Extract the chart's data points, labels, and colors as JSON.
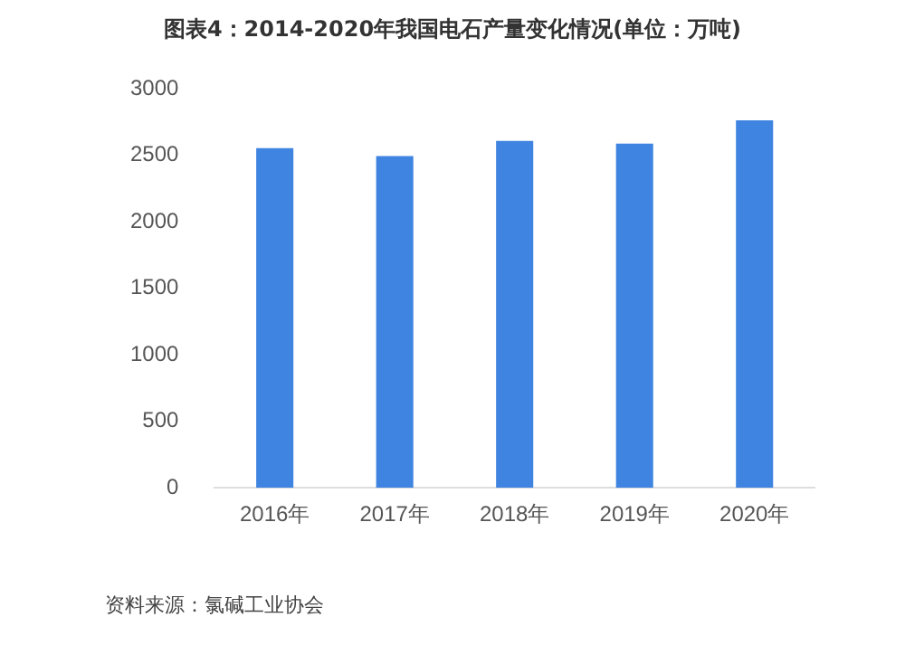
{
  "chart_data": {
    "type": "bar",
    "title": "图表4：2014-2020年我国电石产量变化情况(单位：万吨)",
    "categories": [
      "2016年",
      "2017年",
      "2018年",
      "2019年",
      "2020年"
    ],
    "values": [
      2555,
      2495,
      2610,
      2590,
      2765
    ],
    "color": "#3f84e0",
    "ylim": [
      0,
      3000
    ],
    "yticks": [
      0,
      500,
      1000,
      1500,
      2000,
      2500,
      3000
    ],
    "grid": false,
    "annotations": [
      "资料来源：氯碱工业协会"
    ]
  }
}
